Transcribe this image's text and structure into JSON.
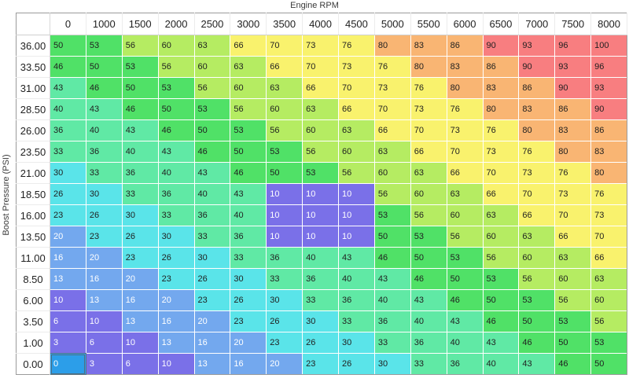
{
  "axes": {
    "x_title": "Engine RPM",
    "y_title": "Boost Pressure (PSI)"
  },
  "table": {
    "col_headers": [
      "0",
      "1000",
      "1500",
      "2000",
      "2500",
      "3000",
      "3500",
      "4000",
      "4500",
      "5000",
      "5500",
      "6000",
      "6500",
      "7000",
      "7500",
      "8000"
    ],
    "row_headers": [
      "36.00",
      "33.50",
      "31.00",
      "28.50",
      "26.00",
      "23.50",
      "21.00",
      "18.50",
      "16.00",
      "13.50",
      "11.00",
      "8.50",
      "6.00",
      "3.50",
      "1.00",
      "0.00"
    ],
    "rows": [
      [
        50,
        53,
        56,
        60,
        63,
        66,
        70,
        73,
        76,
        80,
        83,
        86,
        90,
        93,
        96,
        100
      ],
      [
        46,
        50,
        53,
        56,
        60,
        63,
        66,
        70,
        73,
        76,
        80,
        83,
        86,
        90,
        93,
        96
      ],
      [
        43,
        46,
        50,
        53,
        56,
        60,
        63,
        66,
        70,
        73,
        76,
        80,
        83,
        86,
        90,
        93
      ],
      [
        40,
        43,
        46,
        50,
        53,
        56,
        60,
        63,
        66,
        70,
        73,
        76,
        80,
        83,
        86,
        90
      ],
      [
        36,
        40,
        43,
        46,
        50,
        53,
        56,
        60,
        63,
        66,
        70,
        73,
        76,
        80,
        83,
        86
      ],
      [
        33,
        36,
        40,
        43,
        46,
        50,
        53,
        56,
        60,
        63,
        66,
        70,
        73,
        76,
        80,
        83
      ],
      [
        30,
        33,
        36,
        40,
        43,
        46,
        50,
        53,
        56,
        60,
        63,
        66,
        70,
        73,
        76,
        80
      ],
      [
        26,
        30,
        33,
        36,
        40,
        43,
        10,
        10,
        10,
        56,
        60,
        63,
        66,
        70,
        73,
        76
      ],
      [
        23,
        26,
        30,
        33,
        36,
        40,
        10,
        10,
        10,
        53,
        56,
        60,
        63,
        66,
        70,
        73
      ],
      [
        20,
        23,
        26,
        30,
        33,
        36,
        10,
        10,
        10,
        50,
        53,
        56,
        60,
        63,
        66,
        70
      ],
      [
        16,
        20,
        23,
        26,
        30,
        33,
        36,
        40,
        43,
        46,
        50,
        53,
        56,
        60,
        63,
        66
      ],
      [
        13,
        16,
        20,
        23,
        26,
        30,
        33,
        36,
        40,
        43,
        46,
        50,
        53,
        56,
        60,
        63
      ],
      [
        10,
        13,
        16,
        20,
        23,
        26,
        30,
        33,
        36,
        40,
        43,
        46,
        50,
        53,
        56,
        60
      ],
      [
        6,
        10,
        13,
        16,
        20,
        23,
        26,
        30,
        33,
        36,
        40,
        43,
        46,
        50,
        53,
        56
      ],
      [
        3,
        6,
        10,
        13,
        16,
        20,
        23,
        26,
        30,
        33,
        36,
        40,
        43,
        46,
        50,
        53
      ],
      [
        0,
        3,
        6,
        10,
        13,
        16,
        20,
        23,
        26,
        30,
        33,
        36,
        40,
        43,
        46,
        50
      ]
    ],
    "selected": {
      "row_index": 15,
      "col_index": 0
    }
  },
  "colors": {
    "bands": [
      {
        "max": 12,
        "bg": "#7a70e8",
        "text": "#ffffff"
      },
      {
        "max": 22,
        "bg": "#73a8ee",
        "text": "#ffffff"
      },
      {
        "max": 32,
        "bg": "#5ae4e9",
        "text": "#1f1f1f"
      },
      {
        "max": 45,
        "bg": "#60e9a5",
        "text": "#1f1f1f"
      },
      {
        "max": 55,
        "bg": "#50e167",
        "text": "#1f1f1f"
      },
      {
        "max": 65,
        "bg": "#b5ec62",
        "text": "#1f1f1f"
      },
      {
        "max": 78,
        "bg": "#f9f26d",
        "text": "#1f1f1f"
      },
      {
        "max": 88,
        "bg": "#f9b573",
        "text": "#1f1f1f"
      },
      {
        "max": 1000,
        "bg": "#f87e80",
        "text": "#1f1f1f"
      }
    ],
    "selected_bg": "#2c9ee9",
    "selected_text": "#ffffff",
    "selected_border": "#4f6f80"
  }
}
